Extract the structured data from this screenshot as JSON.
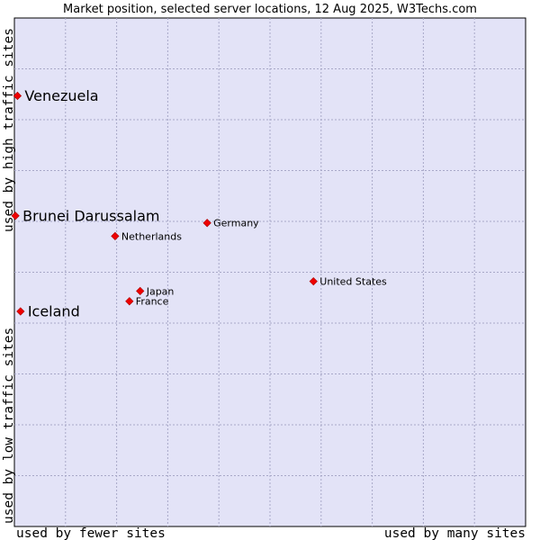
{
  "chart_data": {
    "type": "scatter",
    "title": "Market position, selected server locations, 12 Aug 2025, W3Techs.com",
    "xlabel_left": "used by fewer sites",
    "xlabel_right": "used by many sites",
    "ylabel_bottom": "used by low traffic sites",
    "ylabel_top": "used by high traffic sites",
    "xlim": [
      0,
      100
    ],
    "ylim": [
      0,
      100
    ],
    "grid": true,
    "points": [
      {
        "name": "Venezuela",
        "x": 0.6,
        "y": 84.7,
        "emphasis": true
      },
      {
        "name": "Brunei Darussalam",
        "x": 0.2,
        "y": 61.1,
        "emphasis": true
      },
      {
        "name": "Iceland",
        "x": 1.2,
        "y": 42.3,
        "emphasis": true
      },
      {
        "name": "Germany",
        "x": 37.7,
        "y": 59.7,
        "emphasis": false
      },
      {
        "name": "Netherlands",
        "x": 19.7,
        "y": 57.1,
        "emphasis": false
      },
      {
        "name": "United States",
        "x": 58.5,
        "y": 48.2,
        "emphasis": false
      },
      {
        "name": "Japan",
        "x": 24.6,
        "y": 46.3,
        "emphasis": false
      },
      {
        "name": "France",
        "x": 22.5,
        "y": 44.3,
        "emphasis": false
      }
    ],
    "colors": {
      "background": "#e3e3f7",
      "marker": "#ee0000",
      "marker_edge": "#aa0000"
    }
  }
}
